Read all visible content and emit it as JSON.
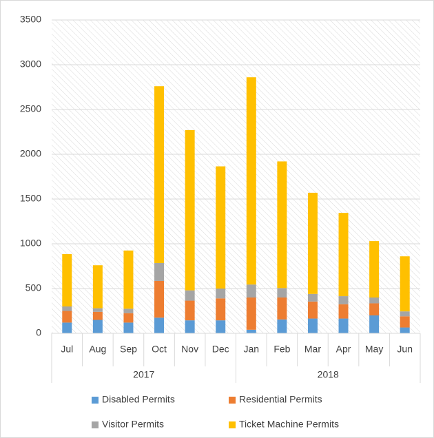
{
  "chart_data": {
    "type": "stacked_bar",
    "category_groups": [
      {
        "name": "2017",
        "categories": [
          "Jul",
          "Aug",
          "Sep",
          "Oct",
          "Nov",
          "Dec"
        ]
      },
      {
        "name": "2018",
        "categories": [
          "Jan",
          "Feb",
          "Mar",
          "Apr",
          "May",
          "Jun"
        ]
      }
    ],
    "series": [
      {
        "name": "Disabled Permits",
        "color": "#5b9bd5",
        "values": [
          120,
          150,
          120,
          175,
          145,
          145,
          40,
          155,
          165,
          165,
          200,
          65
        ]
      },
      {
        "name": "Residential Permits",
        "color": "#ed7d31",
        "values": [
          130,
          90,
          105,
          410,
          220,
          245,
          360,
          245,
          190,
          160,
          135,
          125
        ]
      },
      {
        "name": "Visitor Permits",
        "color": "#a5a5a5",
        "values": [
          50,
          40,
          50,
          200,
          115,
          110,
          145,
          105,
          85,
          90,
          65,
          55
        ]
      },
      {
        "name": "Ticket Machine Permits",
        "color": "#ffc000",
        "values": [
          585,
          480,
          650,
          1975,
          1790,
          1365,
          2315,
          1415,
          1130,
          930,
          630,
          615
        ]
      }
    ],
    "ylim": [
      0,
      3500
    ],
    "yticks": [
      0,
      500,
      1000,
      1500,
      2000,
      2500,
      3000,
      3500
    ],
    "grid": true
  }
}
